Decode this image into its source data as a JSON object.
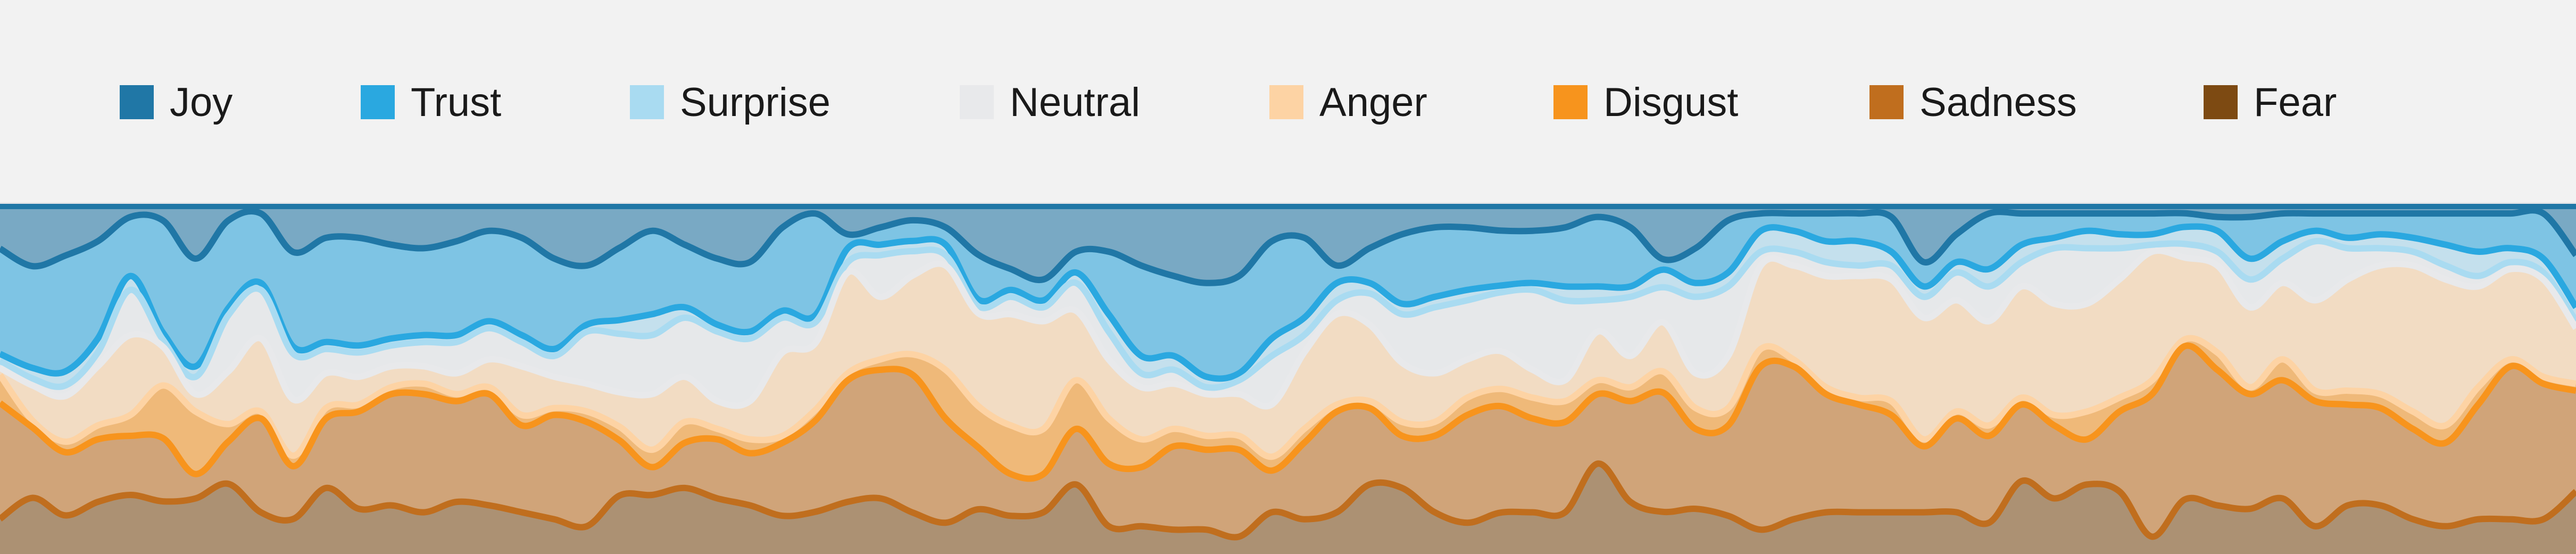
{
  "chart_data": {
    "type": "area",
    "stacked": "normalized",
    "legend_position": "top",
    "grid": false,
    "ylim": [
      0,
      1
    ],
    "x": [
      0,
      1,
      2,
      3,
      4,
      5,
      6,
      7,
      8,
      9,
      10,
      11,
      12,
      13,
      14,
      15,
      16,
      17,
      18,
      19,
      20,
      21,
      22,
      23,
      24,
      25,
      26,
      27,
      28,
      29,
      30,
      31,
      32,
      33,
      34,
      35,
      36,
      37,
      38,
      39,
      40,
      41,
      42,
      43,
      44,
      45,
      46,
      47,
      48,
      49,
      50,
      51,
      52,
      53,
      54,
      55,
      56,
      57,
      58,
      59,
      60,
      61,
      62,
      63,
      64,
      65,
      66,
      67,
      68,
      69,
      70,
      71,
      72,
      73,
      74,
      75,
      76,
      77,
      78,
      79
    ],
    "series": [
      {
        "name": "Joy",
        "color": "#2077a6",
        "values": [
          0.12,
          0.17,
          0.14,
          0.1,
          0.03,
          0.04,
          0.15,
          0.04,
          0.02,
          0.13,
          0.09,
          0.09,
          0.11,
          0.12,
          0.1,
          0.07,
          0.09,
          0.15,
          0.17,
          0.12,
          0.07,
          0.11,
          0.15,
          0.16,
          0.06,
          0.02,
          0.08,
          0.06,
          0.04,
          0.06,
          0.14,
          0.18,
          0.21,
          0.13,
          0.13,
          0.17,
          0.2,
          0.22,
          0.2,
          0.1,
          0.09,
          0.17,
          0.12,
          0.08,
          0.06,
          0.06,
          0.07,
          0.07,
          0.06,
          0.03,
          0.06,
          0.15,
          0.12,
          0.04,
          0.02,
          0.02,
          0.02,
          0.02,
          0.03,
          0.16,
          0.08,
          0.02,
          0.02,
          0.02,
          0.02,
          0.02,
          0.02,
          0.02,
          0.03,
          0.03,
          0.02,
          0.02,
          0.02,
          0.02,
          0.02,
          0.02,
          0.02,
          0.02,
          0.02,
          0.14
        ]
      },
      {
        "name": "Trust",
        "color": "#2aa8e0",
        "values": [
          0.3,
          0.29,
          0.33,
          0.28,
          0.17,
          0.32,
          0.31,
          0.25,
          0.2,
          0.27,
          0.3,
          0.31,
          0.27,
          0.25,
          0.27,
          0.26,
          0.28,
          0.26,
          0.17,
          0.21,
          0.24,
          0.18,
          0.19,
          0.2,
          0.24,
          0.29,
          0.04,
          0.05,
          0.06,
          0.05,
          0.13,
          0.06,
          0.06,
          0.06,
          0.18,
          0.26,
          0.23,
          0.27,
          0.28,
          0.28,
          0.23,
          0.05,
          0.1,
          0.2,
          0.2,
          0.18,
          0.16,
          0.15,
          0.17,
          0.2,
          0.17,
          0.03,
          0.1,
          0.15,
          0.05,
          0.05,
          0.08,
          0.08,
          0.1,
          0.07,
          0.08,
          0.16,
          0.09,
          0.07,
          0.05,
          0.06,
          0.06,
          0.04,
          0.04,
          0.12,
          0.08,
          0.05,
          0.07,
          0.06,
          0.07,
          0.09,
          0.11,
          0.1,
          0.13,
          0.15
        ]
      },
      {
        "name": "Surprise",
        "color": "#a9dbf1",
        "values": [
          0.02,
          0.03,
          0.04,
          0.04,
          0.04,
          0.02,
          0.03,
          0.02,
          0.02,
          0.02,
          0.02,
          0.02,
          0.02,
          0.02,
          0.02,
          0.02,
          0.02,
          0.02,
          0.02,
          0.04,
          0.06,
          0.03,
          0.02,
          0.02,
          0.02,
          0.02,
          0.04,
          0.03,
          0.03,
          0.03,
          0.02,
          0.02,
          0.02,
          0.03,
          0.05,
          0.05,
          0.04,
          0.03,
          0.02,
          0.05,
          0.05,
          0.05,
          0.03,
          0.03,
          0.03,
          0.03,
          0.02,
          0.02,
          0.04,
          0.04,
          0.03,
          0.05,
          0.04,
          0.04,
          0.06,
          0.06,
          0.06,
          0.07,
          0.04,
          0.03,
          0.03,
          0.05,
          0.05,
          0.03,
          0.05,
          0.04,
          0.03,
          0.05,
          0.06,
          0.06,
          0.05,
          0.03,
          0.03,
          0.04,
          0.04,
          0.06,
          0.07,
          0.04,
          0.04,
          0.04
        ]
      },
      {
        "name": "Neutral",
        "color": "#e8e9eb",
        "values": [
          0.02,
          0.02,
          0.03,
          0.04,
          0.13,
          0.02,
          0.05,
          0.16,
          0.14,
          0.13,
          0.07,
          0.07,
          0.06,
          0.07,
          0.09,
          0.09,
          0.07,
          0.06,
          0.15,
          0.17,
          0.17,
          0.17,
          0.2,
          0.18,
          0.1,
          0.06,
          0.03,
          0.12,
          0.07,
          0.03,
          0.02,
          0.05,
          0.04,
          0.08,
          0.08,
          0.04,
          0.04,
          0.02,
          0.04,
          0.14,
          0.05,
          0.04,
          0.09,
          0.14,
          0.19,
          0.17,
          0.17,
          0.23,
          0.23,
          0.09,
          0.17,
          0.1,
          0.22,
          0.2,
          0.04,
          0.04,
          0.04,
          0.03,
          0.04,
          0.06,
          0.08,
          0.1,
          0.07,
          0.16,
          0.16,
          0.09,
          0.02,
          0.04,
          0.04,
          0.08,
          0.07,
          0.17,
          0.09,
          0.05,
          0.04,
          0.04,
          0.03,
          0.02,
          0.02,
          0.02
        ]
      },
      {
        "name": "Anger",
        "color": "#fdd3a4",
        "values": [
          0.02,
          0.1,
          0.13,
          0.17,
          0.23,
          0.11,
          0.05,
          0.15,
          0.21,
          0.16,
          0.1,
          0.08,
          0.06,
          0.05,
          0.06,
          0.08,
          0.14,
          0.09,
          0.08,
          0.1,
          0.16,
          0.13,
          0.08,
          0.11,
          0.24,
          0.19,
          0.29,
          0.18,
          0.23,
          0.3,
          0.27,
          0.32,
          0.31,
          0.2,
          0.17,
          0.15,
          0.13,
          0.12,
          0.12,
          0.15,
          0.22,
          0.26,
          0.22,
          0.17,
          0.14,
          0.11,
          0.11,
          0.08,
          0.06,
          0.14,
          0.09,
          0.14,
          0.1,
          0.15,
          0.24,
          0.27,
          0.32,
          0.35,
          0.35,
          0.35,
          0.32,
          0.3,
          0.32,
          0.32,
          0.31,
          0.34,
          0.37,
          0.24,
          0.25,
          0.23,
          0.22,
          0.26,
          0.32,
          0.37,
          0.42,
          0.42,
          0.29,
          0.26,
          0.28,
          0.16
        ]
      },
      {
        "name": "Disgust",
        "color": "#f7941d",
        "values": [
          0.08,
          0.02,
          0.03,
          0.04,
          0.06,
          0.15,
          0.18,
          0.05,
          0.02,
          0.03,
          0.03,
          0.02,
          0.02,
          0.03,
          0.02,
          0.02,
          0.03,
          0.02,
          0.03,
          0.04,
          0.05,
          0.06,
          0.03,
          0.04,
          0.02,
          0.03,
          0.02,
          0.03,
          0.06,
          0.14,
          0.12,
          0.14,
          0.13,
          0.14,
          0.13,
          0.08,
          0.05,
          0.04,
          0.04,
          0.04,
          0.04,
          0.02,
          0.02,
          0.04,
          0.04,
          0.05,
          0.05,
          0.06,
          0.06,
          0.04,
          0.04,
          0.06,
          0.06,
          0.05,
          0.05,
          0.02,
          0.02,
          0.02,
          0.04,
          0.02,
          0.02,
          0.03,
          0.02,
          0.03,
          0.08,
          0.04,
          0.04,
          0.02,
          0.05,
          0.02,
          0.06,
          0.03,
          0.04,
          0.04,
          0.05,
          0.05,
          0.05,
          0.02,
          0.02,
          0.02
        ]
      },
      {
        "name": "Sadness",
        "color": "#c06e1e",
        "values": [
          0.33,
          0.2,
          0.18,
          0.18,
          0.17,
          0.18,
          0.07,
          0.12,
          0.27,
          0.15,
          0.2,
          0.28,
          0.32,
          0.34,
          0.29,
          0.32,
          0.25,
          0.3,
          0.3,
          0.16,
          0.08,
          0.13,
          0.17,
          0.15,
          0.21,
          0.26,
          0.35,
          0.37,
          0.4,
          0.3,
          0.18,
          0.12,
          0.11,
          0.16,
          0.18,
          0.17,
          0.24,
          0.23,
          0.25,
          0.12,
          0.22,
          0.29,
          0.22,
          0.15,
          0.22,
          0.31,
          0.31,
          0.27,
          0.26,
          0.2,
          0.29,
          0.34,
          0.23,
          0.26,
          0.47,
          0.44,
          0.34,
          0.31,
          0.28,
          0.19,
          0.27,
          0.25,
          0.22,
          0.21,
          0.13,
          0.23,
          0.41,
          0.45,
          0.39,
          0.33,
          0.34,
          0.36,
          0.29,
          0.28,
          0.26,
          0.24,
          0.33,
          0.44,
          0.39,
          0.29
        ]
      },
      {
        "name": "Fear",
        "color": "#7d4a12",
        "values": [
          0.1,
          0.16,
          0.11,
          0.15,
          0.17,
          0.15,
          0.16,
          0.2,
          0.12,
          0.1,
          0.19,
          0.13,
          0.14,
          0.12,
          0.15,
          0.14,
          0.12,
          0.1,
          0.08,
          0.17,
          0.17,
          0.19,
          0.16,
          0.14,
          0.11,
          0.12,
          0.15,
          0.16,
          0.12,
          0.09,
          0.13,
          0.11,
          0.12,
          0.2,
          0.08,
          0.08,
          0.07,
          0.07,
          0.05,
          0.12,
          0.1,
          0.12,
          0.2,
          0.19,
          0.12,
          0.09,
          0.12,
          0.12,
          0.12,
          0.26,
          0.15,
          0.12,
          0.13,
          0.11,
          0.07,
          0.1,
          0.12,
          0.12,
          0.12,
          0.12,
          0.12,
          0.09,
          0.21,
          0.16,
          0.2,
          0.18,
          0.05,
          0.16,
          0.14,
          0.13,
          0.16,
          0.08,
          0.14,
          0.14,
          0.1,
          0.08,
          0.1,
          0.1,
          0.1,
          0.18
        ]
      }
    ]
  }
}
